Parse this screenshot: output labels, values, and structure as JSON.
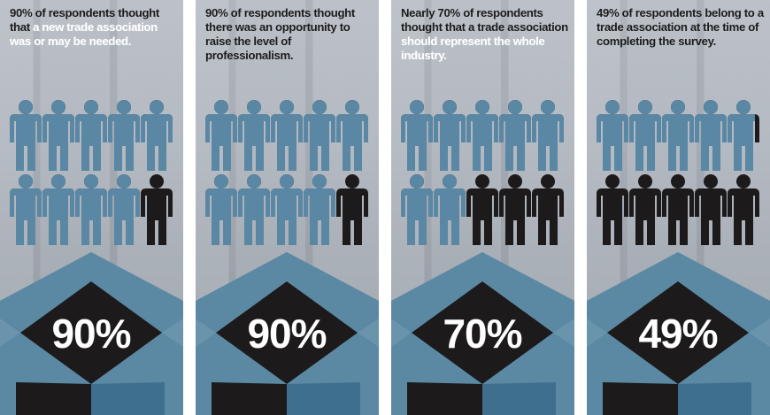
{
  "colors": {
    "filled": "#5a87a3",
    "empty": "#1c1a1a",
    "diamond_light": "#5b89a4",
    "diamond_dark": "#1c1a1a",
    "bottom_blue": "#3f6f8e"
  },
  "chart_data": [
    {
      "type": "pictogram",
      "total": 10,
      "value": 90,
      "caption_before": "90% of respondents thought that ",
      "caption_highlight": "a new trade association was or may be needed.",
      "label": "90%"
    },
    {
      "type": "pictogram",
      "total": 10,
      "value": 90,
      "caption_before": "90% of respondents thought there was an opportunity to raise the level of professionalism.",
      "caption_highlight": "",
      "label": "90%"
    },
    {
      "type": "pictogram",
      "total": 10,
      "value": 70,
      "caption_before": "Nearly 70% of respondents thought that a trade association ",
      "caption_highlight": "should represent the whole industry.",
      "label": "70%"
    },
    {
      "type": "pictogram",
      "total": 10,
      "value": 49,
      "caption_before": "49% of respondents belong to a trade association at the time of completing the survey.",
      "caption_highlight": "",
      "label": "49%"
    }
  ]
}
